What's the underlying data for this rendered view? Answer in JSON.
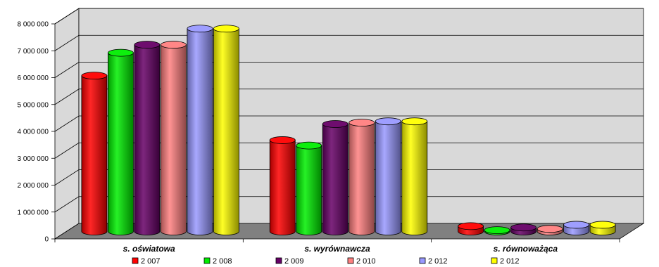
{
  "chart_data": {
    "type": "bar",
    "subtype": "3d-cylinder-clustered",
    "categories": [
      "s. oświatowa",
      "s. wyrównawcza",
      "s. równoważąca"
    ],
    "series": [
      {
        "name": "2 007",
        "color": "#ff0000",
        "values": [
          5800000,
          3400000,
          200000
        ]
      },
      {
        "name": "2 008",
        "color": "#00ee00",
        "values": [
          6650000,
          3200000,
          50000
        ]
      },
      {
        "name": "2 009",
        "color": "#660066",
        "values": [
          6950000,
          4000000,
          150000
        ]
      },
      {
        "name": "2 010",
        "color": "#ff8080",
        "values": [
          6950000,
          4050000,
          100000
        ]
      },
      {
        "name": "2 012",
        "color": "#9999ff",
        "values": [
          7550000,
          4100000,
          250000
        ]
      },
      {
        "name": "2 012",
        "color": "#ffff00",
        "values": [
          7550000,
          4100000,
          250000
        ]
      }
    ],
    "ylim": [
      0,
      8000000
    ],
    "yticks": [
      "0",
      "1 000 000",
      "2 000 000",
      "3 000 000",
      "4 000 000",
      "5 000 000",
      "6 000 000",
      "7 000 000",
      "8 000 000"
    ],
    "grid": true,
    "legend": "bottom",
    "colors": {
      "wall": "#d9d9d9",
      "floor": "#808080",
      "grid": "#000000"
    }
  }
}
